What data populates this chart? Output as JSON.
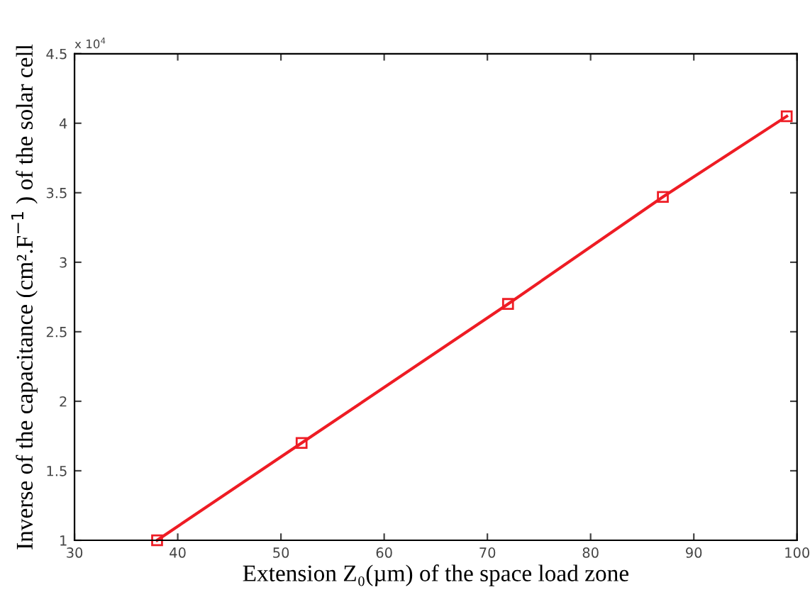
{
  "chart_data": {
    "type": "line",
    "xlabel": "Extension Z₀(µm) of the space load zone",
    "ylabel": "Inverse of the capacitance (cm².F$^{−1}$ ) of the solar cell",
    "annotations": [
      "x 10$^{4}$"
    ],
    "x": [
      38,
      52,
      72,
      87,
      99
    ],
    "series": [
      {
        "color": "#ee1c24",
        "values": [
          1.0,
          1.7,
          2.7,
          3.47,
          4.05
        ]
      }
    ],
    "marker": "square",
    "line_style": "solid",
    "grid": false,
    "legend": false,
    "xlim": [
      30,
      100
    ],
    "xticks": [
      30,
      40,
      50,
      60,
      70,
      80,
      90,
      100
    ],
    "ylim": [
      1,
      4.5
    ],
    "yticks": [
      1,
      1.5,
      2,
      2.5,
      3,
      3.5,
      4,
      4.5
    ]
  }
}
